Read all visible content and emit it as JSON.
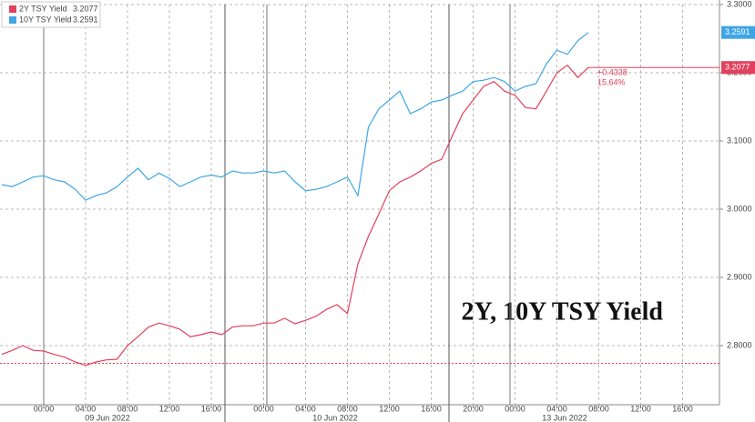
{
  "chart_data": {
    "type": "line",
    "title": "2Y, 10Y TSY Yield",
    "categories": [
      null,
      null,
      null,
      null,
      "00:00",
      null,
      null,
      null,
      "04:00",
      null,
      null,
      null,
      "08:00",
      null,
      null,
      null,
      "12:00",
      null,
      null,
      null,
      "16:00",
      null,
      null,
      null,
      null,
      "00:00",
      null,
      null,
      null,
      "04:00",
      null,
      null,
      null,
      "08:00",
      null,
      null,
      null,
      "12:00",
      null,
      null,
      null,
      "16:00",
      null,
      null,
      null,
      "20:00",
      null,
      null,
      null,
      "00:00",
      null,
      null,
      null,
      "04:00",
      null,
      null,
      null,
      "08:00",
      null,
      null,
      null,
      "12:00",
      null,
      null,
      null,
      "16:00",
      null,
      null,
      null
    ],
    "date_labels": [
      "09 Jun 2022",
      "10 Jun 2022",
      "13 Jun 2022"
    ],
    "series": [
      {
        "name": "2Y TSY Yield",
        "color": "#e2405c",
        "last": 3.2077,
        "values": [
          2.787,
          2.793,
          2.8,
          2.793,
          2.792,
          2.787,
          2.783,
          2.776,
          2.771,
          2.776,
          2.779,
          2.78,
          2.8,
          2.813,
          2.827,
          2.833,
          2.829,
          2.824,
          2.813,
          2.816,
          2.82,
          2.816,
          2.827,
          2.829,
          2.829,
          2.833,
          2.833,
          2.84,
          2.832,
          2.837,
          2.843,
          2.853,
          2.86,
          2.847,
          2.92,
          2.96,
          2.993,
          3.027,
          3.04,
          3.047,
          3.056,
          3.067,
          3.073,
          3.107,
          3.14,
          3.16,
          3.18,
          3.187,
          3.173,
          3.167,
          3.149,
          3.147,
          3.173,
          3.2,
          3.211,
          3.193,
          3.2077,
          null,
          null,
          null,
          null,
          null,
          null,
          null,
          null,
          null,
          null,
          null,
          null
        ]
      },
      {
        "name": "10Y TSY Yield",
        "color": "#3fa6e6",
        "last": 3.2591,
        "values": [
          3.036,
          3.033,
          3.04,
          3.047,
          3.049,
          3.043,
          3.04,
          3.029,
          3.013,
          3.02,
          3.024,
          3.033,
          3.047,
          3.06,
          3.043,
          3.053,
          3.045,
          3.033,
          3.04,
          3.047,
          3.05,
          3.047,
          3.056,
          3.053,
          3.053,
          3.056,
          3.053,
          3.056,
          3.04,
          3.027,
          3.029,
          3.033,
          3.04,
          3.047,
          3.02,
          3.12,
          3.147,
          3.16,
          3.173,
          3.14,
          3.147,
          3.157,
          3.16,
          3.167,
          3.173,
          3.187,
          3.189,
          3.193,
          3.187,
          3.173,
          3.18,
          3.184,
          3.213,
          3.233,
          3.227,
          3.247,
          3.2591,
          null,
          null,
          null,
          null,
          null,
          null,
          null,
          null,
          null,
          null,
          null,
          null
        ]
      }
    ],
    "reference_line": 2.7739,
    "change": {
      "value": 0.4338,
      "label": "+0.4338"
    },
    "change_pct": {
      "value": 15.64,
      "label": "15.64%"
    },
    "ylim": [
      2.7133,
      3.3
    ],
    "yticks": [
      {
        "value": 2.8,
        "label": "2.8000"
      },
      {
        "value": 2.9,
        "label": "2.9000"
      },
      {
        "value": 3.0,
        "label": "3.0000"
      },
      {
        "value": 3.1,
        "label": "3.1000"
      },
      {
        "value": 3.2,
        "label": "3.2000"
      },
      {
        "value": 3.3,
        "label": "3.3000"
      }
    ],
    "grid": true
  }
}
